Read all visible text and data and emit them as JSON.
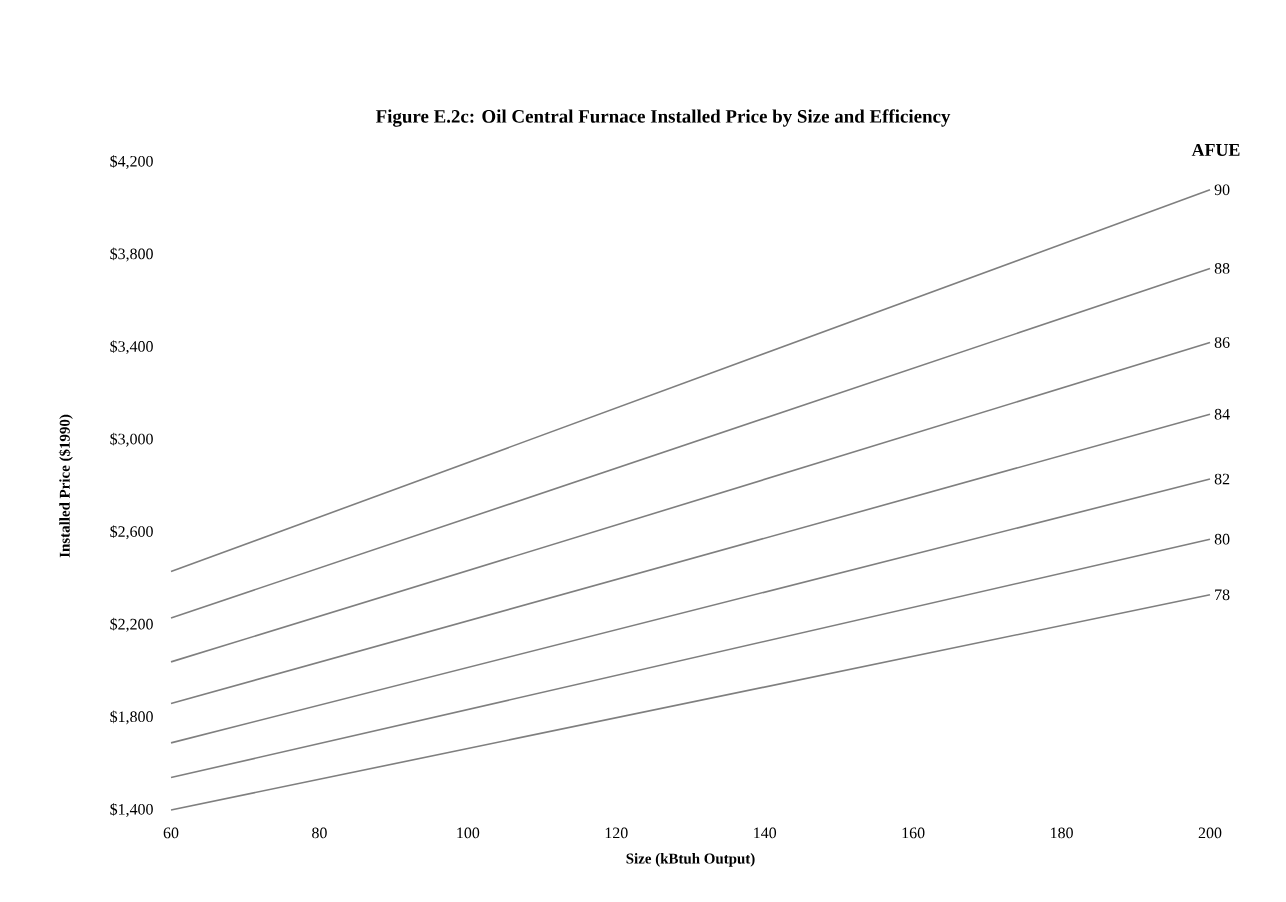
{
  "chart_data": {
    "type": "line",
    "title": "Figure E.2c: Oil Central Furnace Installed Price by Size and Efficiency",
    "xlabel": "Size (kBtuh Output)",
    "ylabel": "Installed Price ($1990)",
    "legend_title": "AFUE",
    "x": [
      60,
      200
    ],
    "xlim": [
      60,
      200
    ],
    "ylim": [
      1400,
      4200
    ],
    "xticks": [
      60,
      80,
      100,
      120,
      140,
      160,
      180,
      200
    ],
    "yticks": [
      {
        "value": 1400,
        "label": "$1,400"
      },
      {
        "value": 1800,
        "label": "$1,800"
      },
      {
        "value": 2200,
        "label": "$2,200"
      },
      {
        "value": 2600,
        "label": "$2,600"
      },
      {
        "value": 3000,
        "label": "$3,000"
      },
      {
        "value": 3400,
        "label": "$3,400"
      },
      {
        "value": 3800,
        "label": "$3,800"
      },
      {
        "value": 4200,
        "label": "$4,200"
      }
    ],
    "marker": "none",
    "line_style": "solid",
    "grid": false,
    "series": [
      {
        "name": "90",
        "color": "#7f7f7f",
        "values": [
          2430,
          4080
        ]
      },
      {
        "name": "88",
        "color": "#7f7f7f",
        "values": [
          2230,
          3740
        ]
      },
      {
        "name": "86",
        "color": "#7f7f7f",
        "values": [
          2040,
          3420
        ]
      },
      {
        "name": "84",
        "color": "#7f7f7f",
        "values": [
          1860,
          3110
        ]
      },
      {
        "name": "82",
        "color": "#7f7f7f",
        "values": [
          1690,
          2830
        ]
      },
      {
        "name": "80",
        "color": "#7f7f7f",
        "values": [
          1540,
          2570
        ]
      },
      {
        "name": "78",
        "color": "#7f7f7f",
        "values": [
          1400,
          2330
        ]
      }
    ]
  }
}
